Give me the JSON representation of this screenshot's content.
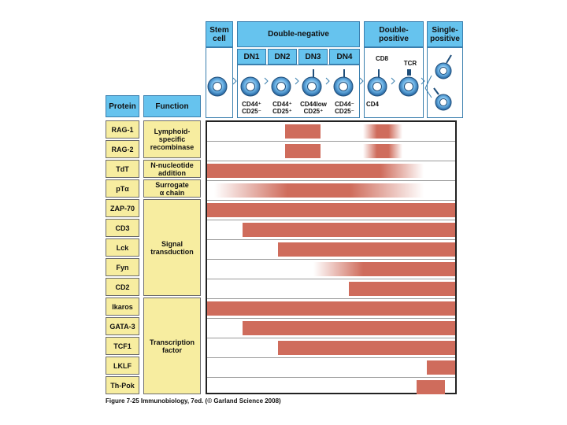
{
  "stages": {
    "stem": "Stem\ncell",
    "double_negative": "Double-negative",
    "double_positive": "Double-\npositive",
    "single_positive": "Single-\npositive",
    "dn": [
      "DN1",
      "DN2",
      "DN3",
      "DN4"
    ],
    "markers": [
      "CD44⁺\nCD25⁻",
      "CD44⁺\nCD25⁺",
      "CD44low\nCD25⁺",
      "CD44⁻\nCD25⁻"
    ],
    "dp_labels": {
      "cd8": "CD8",
      "tcr": "TCR",
      "cd4": "CD4"
    }
  },
  "headers": {
    "protein": "Protein",
    "function": "Function"
  },
  "proteins": [
    "RAG-1",
    "RAG-2",
    "TdT",
    "pTα",
    "ZAP-70",
    "CD3",
    "Lck",
    "Fyn",
    "CD2",
    "Ikaros",
    "GATA-3",
    "TCF1",
    "LKLF",
    "Th-Pok"
  ],
  "functions": [
    {
      "label": "Lymphoid-\nspecific\nrecombinase",
      "rows": [
        0,
        1
      ]
    },
    {
      "label": "N-nucleotide\naddition",
      "rows": [
        2,
        2
      ]
    },
    {
      "label": "Surrogate\nα chain",
      "rows": [
        3,
        3
      ]
    },
    {
      "label": "Signal\ntransduction",
      "rows": [
        4,
        8
      ]
    },
    {
      "label": "Transcription\nfactor",
      "rows": [
        9,
        13
      ]
    }
  ],
  "chart_data": {
    "type": "expression-timeline",
    "stage_axis": [
      "Stem cell",
      "DN1",
      "DN2",
      "DN3",
      "DN4",
      "Double-positive",
      "Single-positive"
    ],
    "expression": [
      {
        "protein": "RAG-1",
        "segments": [
          {
            "from": 2.2,
            "to": 3.2,
            "fade": "none"
          },
          {
            "from": 4.4,
            "to": 5.5,
            "fade": "both"
          }
        ]
      },
      {
        "protein": "RAG-2",
        "segments": [
          {
            "from": 2.2,
            "to": 3.2,
            "fade": "none"
          },
          {
            "from": 4.4,
            "to": 5.5,
            "fade": "both"
          }
        ]
      },
      {
        "protein": "TdT",
        "segments": [
          {
            "from": 0.0,
            "to": 6.1,
            "fade": "right"
          }
        ]
      },
      {
        "protein": "pTα",
        "segments": [
          {
            "from": 0.2,
            "to": 6.1,
            "fade": "both"
          }
        ]
      },
      {
        "protein": "ZAP-70",
        "segments": [
          {
            "from": 0.0,
            "to": 7.0,
            "fade": "none"
          }
        ]
      },
      {
        "protein": "CD3",
        "segments": [
          {
            "from": 1.0,
            "to": 7.0,
            "fade": "none"
          }
        ]
      },
      {
        "protein": "Lck",
        "segments": [
          {
            "from": 2.0,
            "to": 7.0,
            "fade": "none"
          }
        ]
      },
      {
        "protein": "Fyn",
        "segments": [
          {
            "from": 3.0,
            "to": 7.0,
            "fade": "left"
          }
        ]
      },
      {
        "protein": "CD2",
        "segments": [
          {
            "from": 4.0,
            "to": 7.0,
            "fade": "none"
          }
        ]
      },
      {
        "protein": "Ikaros",
        "segments": [
          {
            "from": 0.0,
            "to": 7.0,
            "fade": "none"
          }
        ]
      },
      {
        "protein": "GATA-3",
        "segments": [
          {
            "from": 1.0,
            "to": 7.0,
            "fade": "none"
          }
        ]
      },
      {
        "protein": "TCF1",
        "segments": [
          {
            "from": 2.0,
            "to": 7.0,
            "fade": "none"
          }
        ]
      },
      {
        "protein": "LKLF",
        "segments": [
          {
            "from": 6.2,
            "to": 7.0,
            "fade": "none"
          }
        ]
      },
      {
        "protein": "Th-Pok",
        "segments": [
          {
            "from": 5.9,
            "to": 6.7,
            "fade": "none"
          }
        ]
      }
    ]
  },
  "colors": {
    "bar": "#cf6c5c",
    "header": "#66c3ee",
    "cell": "#f7eda0",
    "cell_blue": "#3f8fcf"
  },
  "caption": "Figure 7-25 Immunobiology, 7ed. (© Garland Science 2008)"
}
